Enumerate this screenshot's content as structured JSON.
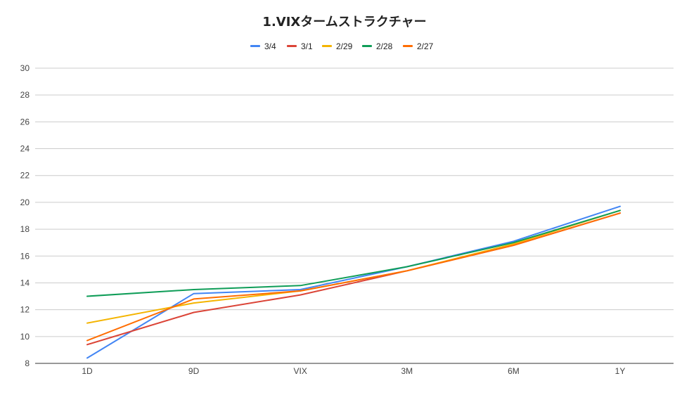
{
  "chart_data": {
    "type": "line",
    "title": "1.VIXタームストラクチャー",
    "xlabel": "",
    "ylabel": "",
    "categories": [
      "1D",
      "9D",
      "VIX",
      "3M",
      "6M",
      "1Y"
    ],
    "ylim": [
      8,
      30
    ],
    "yticks": [
      8,
      10,
      12,
      14,
      16,
      18,
      20,
      22,
      24,
      26,
      28,
      30
    ],
    "grid": true,
    "legend_position": "top",
    "series": [
      {
        "name": "3/4",
        "color": "#4285f4",
        "values": [
          8.4,
          13.2,
          13.5,
          15.2,
          17.1,
          19.7
        ]
      },
      {
        "name": "3/1",
        "color": "#db4437",
        "values": [
          9.4,
          11.8,
          13.1,
          14.9,
          16.8,
          19.2
        ]
      },
      {
        "name": "2/29",
        "color": "#f4b400",
        "values": [
          11.0,
          12.5,
          13.4,
          14.9,
          16.9,
          19.4
        ]
      },
      {
        "name": "2/28",
        "color": "#0f9d58",
        "values": [
          13.0,
          13.5,
          13.8,
          15.2,
          17.0,
          19.4
        ]
      },
      {
        "name": "2/27",
        "color": "#ff6d01",
        "values": [
          9.7,
          12.8,
          13.4,
          14.9,
          16.8,
          19.2
        ]
      }
    ]
  }
}
